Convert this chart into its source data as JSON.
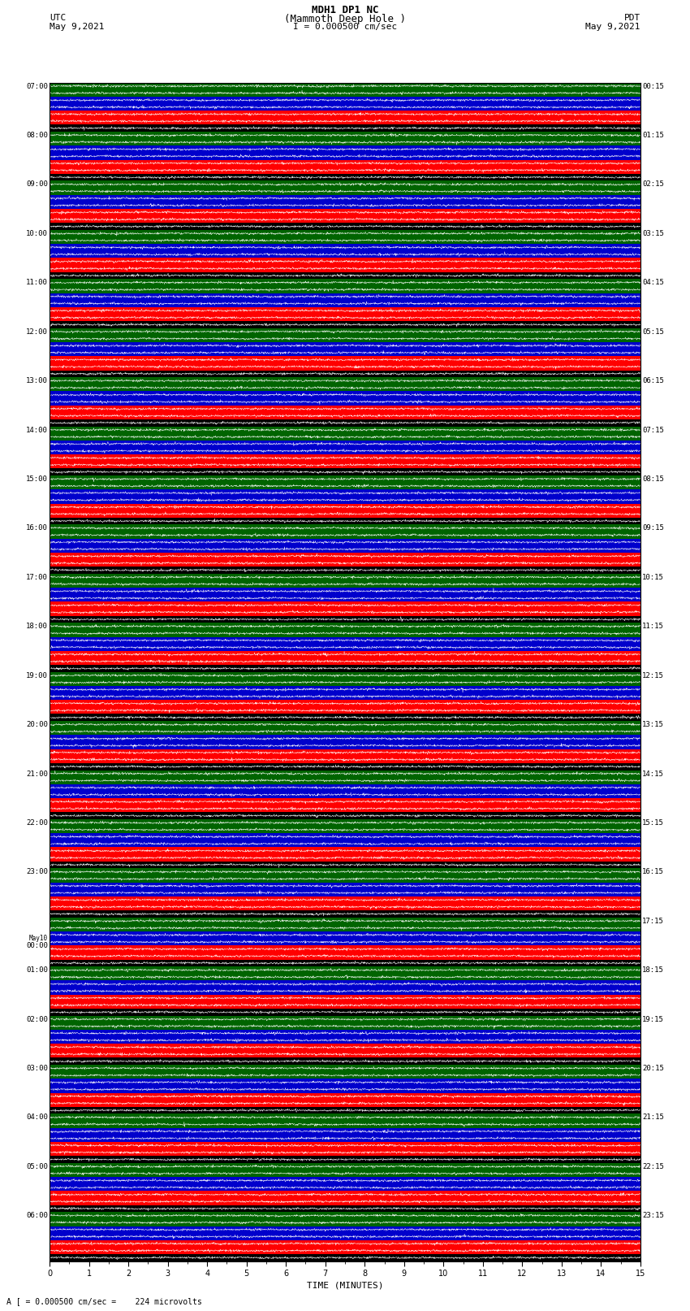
{
  "title_line1": "MDH1 DP1 NC",
  "title_line2": "(Mammoth Deep Hole )",
  "scale_label": "I = 0.000500 cm/sec",
  "left_date": "May 9,2021",
  "right_date": "May 9,2021",
  "utc_label": "UTC",
  "pdt_label": "PDT",
  "xlabel": "TIME (MINUTES)",
  "bottom_label": "A [ = 0.000500 cm/sec =    224 microvolts",
  "fig_background": "#ffffff",
  "xmin": 0,
  "xmax": 15,
  "xticks": [
    0,
    1,
    2,
    3,
    4,
    5,
    6,
    7,
    8,
    9,
    10,
    11,
    12,
    13,
    14,
    15
  ],
  "n_groups": 24,
  "bands_per_group": [
    "#000000",
    "#ff0000",
    "#ff0000",
    "#0000cc",
    "#0000cc",
    "#006400",
    "#006400"
  ],
  "wave_colors": [
    "#ffffff",
    "#ffffff",
    "#ffffff",
    "#ffffff",
    "#ffffff",
    "#ffffff",
    "#ffffff"
  ],
  "left_labels_utc": [
    "07:00",
    "08:00",
    "09:00",
    "10:00",
    "11:00",
    "12:00",
    "13:00",
    "14:00",
    "15:00",
    "16:00",
    "17:00",
    "18:00",
    "19:00",
    "20:00",
    "21:00",
    "22:00",
    "23:00",
    "May10\n00:00",
    "01:00",
    "02:00",
    "03:00",
    "04:00",
    "05:00",
    "06:00"
  ],
  "right_labels_pdt": [
    "00:15",
    "01:15",
    "02:15",
    "03:15",
    "04:15",
    "05:15",
    "06:15",
    "07:15",
    "08:15",
    "09:15",
    "10:15",
    "11:15",
    "12:15",
    "13:15",
    "14:15",
    "15:15",
    "16:15",
    "17:15",
    "18:15",
    "19:15",
    "20:15",
    "21:15",
    "22:15",
    "23:15"
  ]
}
